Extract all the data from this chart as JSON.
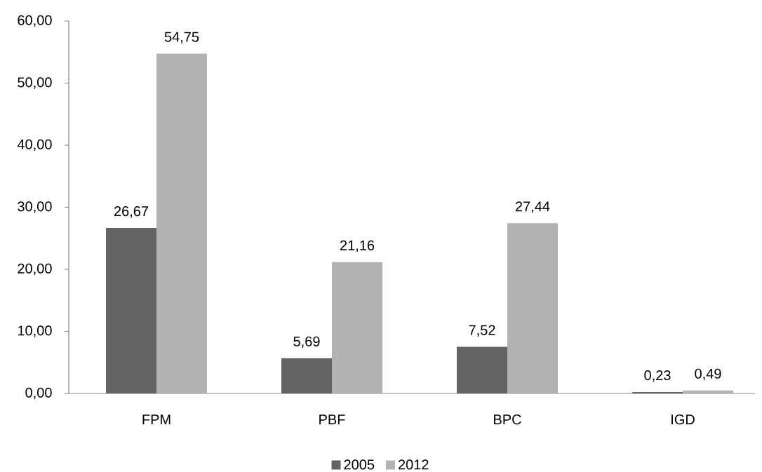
{
  "chart_data": {
    "type": "bar",
    "categories": [
      "FPM",
      "PBF",
      "BPC",
      "IGD"
    ],
    "series": [
      {
        "name": "2005",
        "color": "#646464",
        "values": [
          26.67,
          5.69,
          7.52,
          0.23
        ],
        "value_labels": [
          "26,67",
          "5,69",
          "7,52",
          "0,23"
        ]
      },
      {
        "name": "2012",
        "color": "#b2b2b2",
        "values": [
          54.75,
          21.16,
          27.44,
          0.49
        ],
        "value_labels": [
          "54,75",
          "21,16",
          "27,44",
          "0,49"
        ]
      }
    ],
    "ylim": [
      0,
      60
    ],
    "yticks": [
      {
        "value": 0,
        "label": "0,00"
      },
      {
        "value": 10,
        "label": "10,00"
      },
      {
        "value": 20,
        "label": "20,00"
      },
      {
        "value": 30,
        "label": "30,00"
      },
      {
        "value": 40,
        "label": "40,00"
      },
      {
        "value": 50,
        "label": "50,00"
      },
      {
        "value": 60,
        "label": "60,00"
      }
    ],
    "legend": "bottom"
  }
}
